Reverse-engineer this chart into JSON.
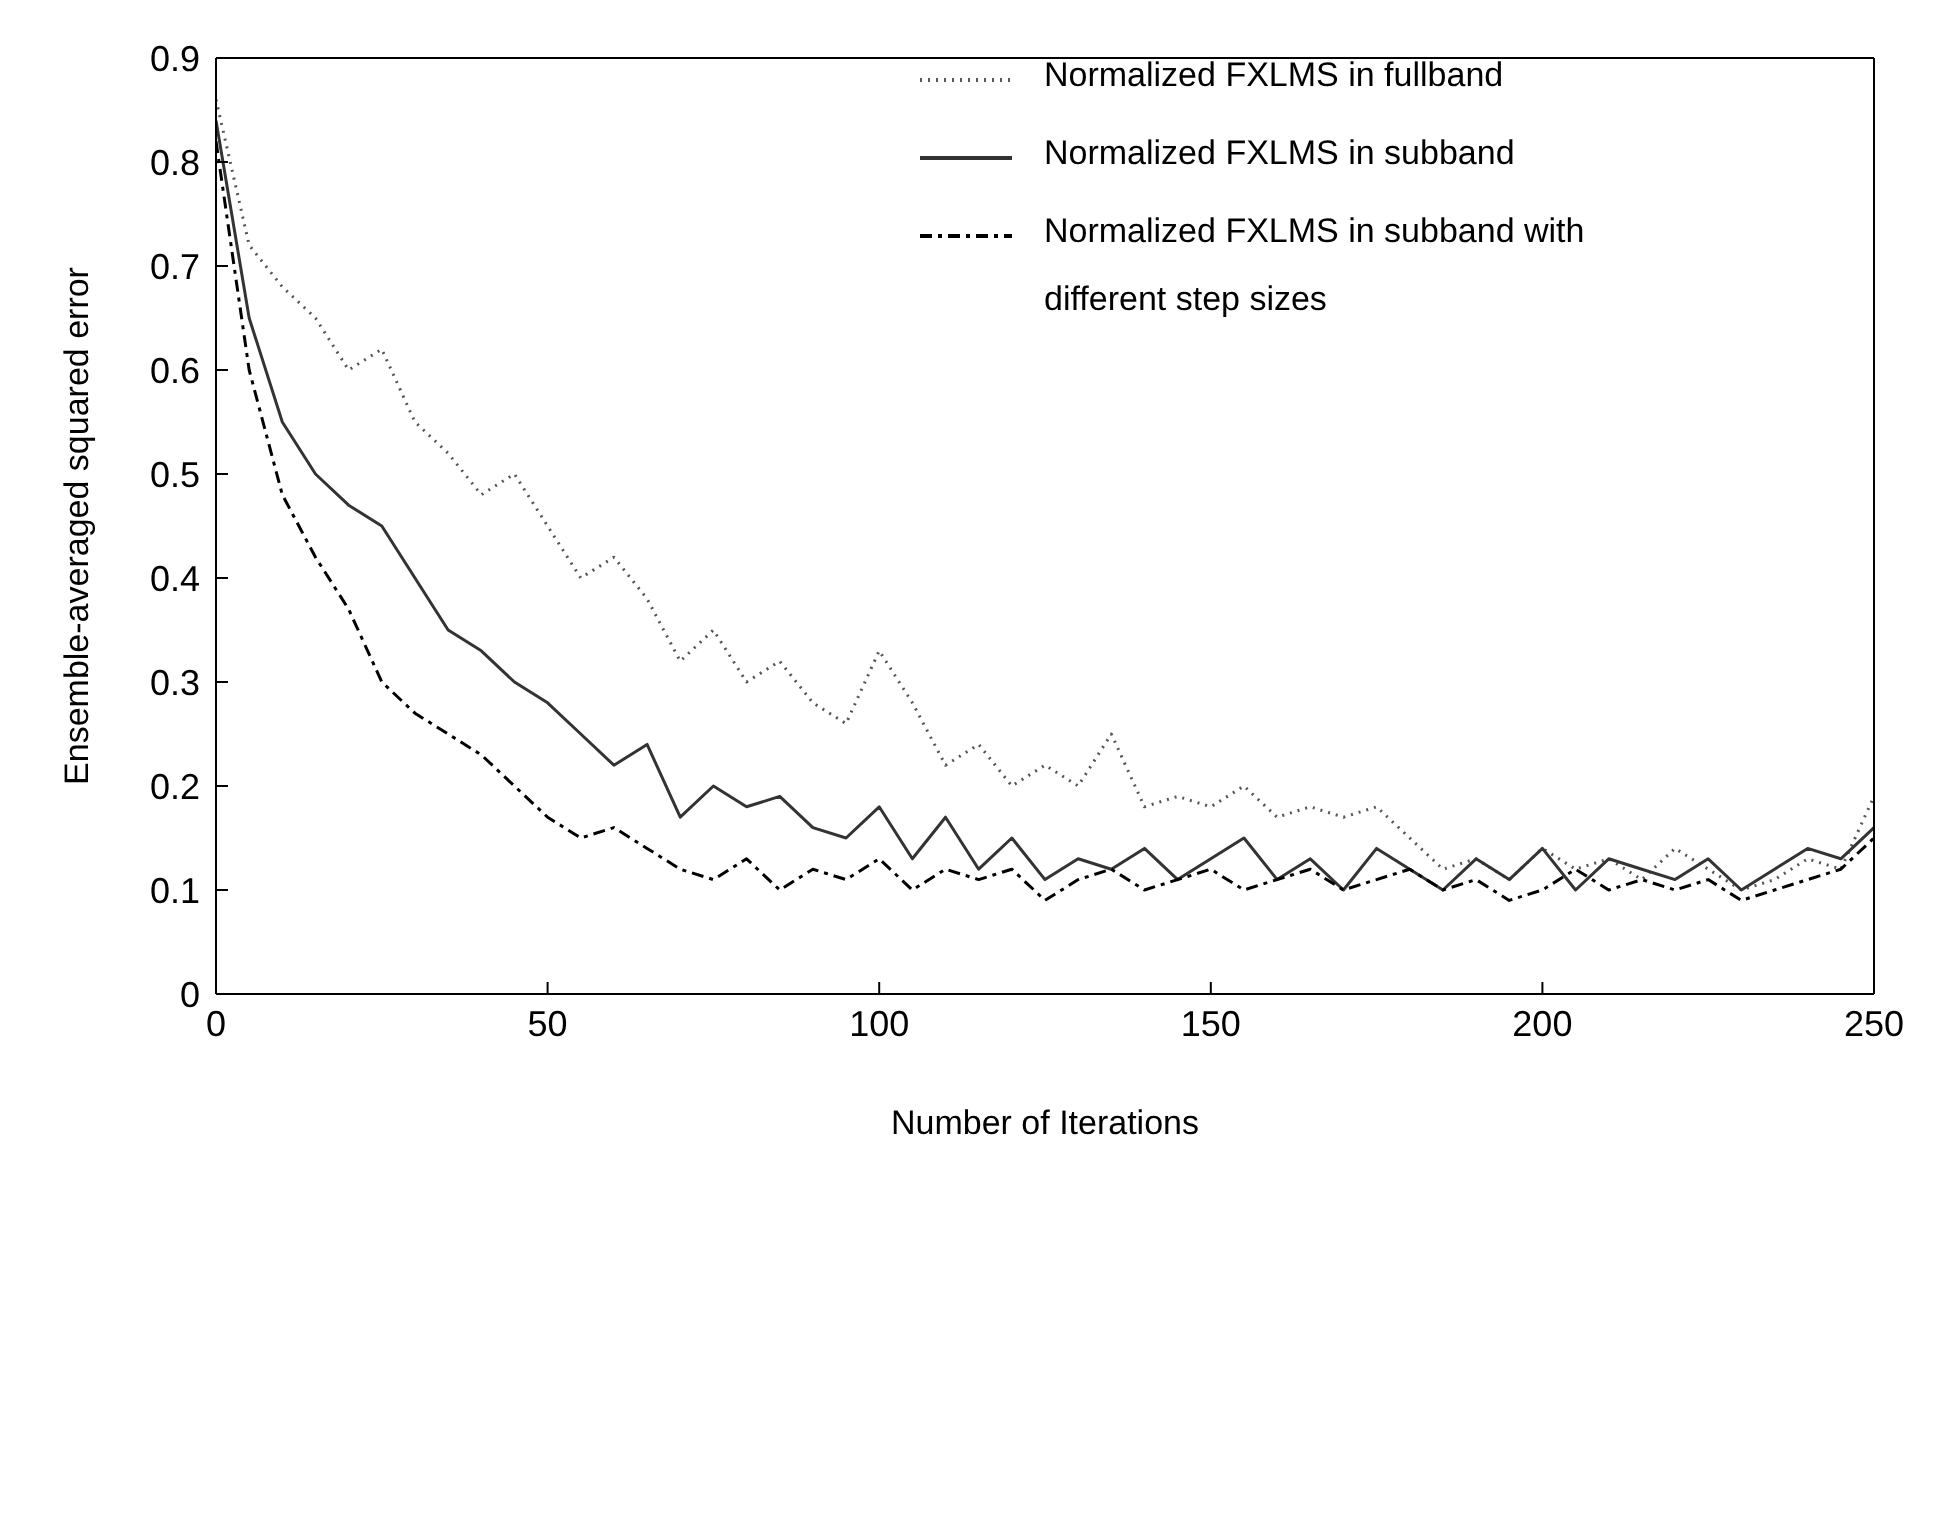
{
  "chart_data": {
    "type": "line",
    "xlabel": "Number of Iterations",
    "ylabel": "Ensemble-averaged squared error",
    "x": [
      0,
      5,
      10,
      15,
      20,
      25,
      30,
      35,
      40,
      45,
      50,
      55,
      60,
      65,
      70,
      75,
      80,
      85,
      90,
      95,
      100,
      105,
      110,
      115,
      120,
      125,
      130,
      135,
      140,
      145,
      150,
      155,
      160,
      165,
      170,
      175,
      180,
      185,
      190,
      195,
      200,
      205,
      210,
      215,
      220,
      225,
      230,
      235,
      240,
      245,
      250
    ],
    "series": [
      {
        "name": "Normalized FXLMS in fullband",
        "color": "#555555",
        "line_style": "dotted",
        "values": [
          0.86,
          0.72,
          0.68,
          0.65,
          0.6,
          0.62,
          0.55,
          0.52,
          0.48,
          0.5,
          0.45,
          0.4,
          0.42,
          0.38,
          0.32,
          0.35,
          0.3,
          0.32,
          0.28,
          0.26,
          0.33,
          0.28,
          0.22,
          0.24,
          0.2,
          0.22,
          0.2,
          0.25,
          0.18,
          0.19,
          0.18,
          0.2,
          0.17,
          0.18,
          0.17,
          0.18,
          0.15,
          0.12,
          0.13,
          0.11,
          0.14,
          0.12,
          0.13,
          0.11,
          0.14,
          0.12,
          0.1,
          0.11,
          0.13,
          0.12,
          0.19
        ]
      },
      {
        "name": "Normalized FXLMS in subband",
        "color": "#333333",
        "line_style": "solid",
        "values": [
          0.84,
          0.65,
          0.55,
          0.5,
          0.47,
          0.45,
          0.4,
          0.35,
          0.33,
          0.3,
          0.28,
          0.25,
          0.22,
          0.24,
          0.17,
          0.2,
          0.18,
          0.19,
          0.16,
          0.15,
          0.18,
          0.13,
          0.17,
          0.12,
          0.15,
          0.11,
          0.13,
          0.12,
          0.14,
          0.11,
          0.13,
          0.15,
          0.11,
          0.13,
          0.1,
          0.14,
          0.12,
          0.1,
          0.13,
          0.11,
          0.14,
          0.1,
          0.13,
          0.12,
          0.11,
          0.13,
          0.1,
          0.12,
          0.14,
          0.13,
          0.16
        ]
      },
      {
        "name": "Normalized FXLMS in subband with different step sizes",
        "color": "#000000",
        "line_style": "dashed",
        "values": [
          0.82,
          0.6,
          0.48,
          0.42,
          0.37,
          0.3,
          0.27,
          0.25,
          0.23,
          0.2,
          0.17,
          0.15,
          0.16,
          0.14,
          0.12,
          0.11,
          0.13,
          0.1,
          0.12,
          0.11,
          0.13,
          0.1,
          0.12,
          0.11,
          0.12,
          0.09,
          0.11,
          0.12,
          0.1,
          0.11,
          0.12,
          0.1,
          0.11,
          0.12,
          0.1,
          0.11,
          0.12,
          0.1,
          0.11,
          0.09,
          0.1,
          0.12,
          0.1,
          0.11,
          0.1,
          0.11,
          0.09,
          0.1,
          0.11,
          0.12,
          0.15
        ]
      }
    ],
    "xlim": [
      0,
      250
    ],
    "xticks": [
      0,
      50,
      100,
      150,
      200,
      250
    ],
    "ylim": [
      0,
      0.9
    ],
    "yticks": [
      0,
      0.1,
      0.2,
      0.3,
      0.4,
      0.5,
      0.6,
      0.7,
      0.8,
      0.9
    ],
    "grid": false,
    "legend": "top right",
    "marker": "none"
  }
}
